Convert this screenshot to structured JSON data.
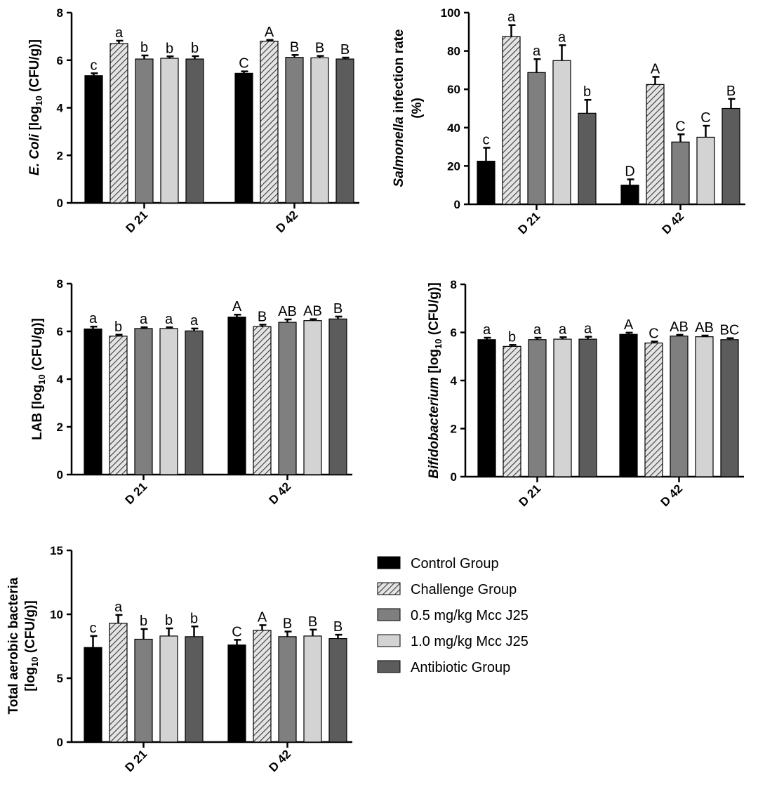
{
  "legend": [
    {
      "name": "Control Group",
      "fill": "#000000",
      "pattern": false
    },
    {
      "name": "Challenge Group",
      "fill": "#d0d0d0",
      "pattern": true
    },
    {
      "name": "0.5 mg/kg Mcc J25",
      "fill": "#7f7f7f",
      "pattern": false
    },
    {
      "name": "1.0 mg/kg Mcc J25",
      "fill": "#d3d3d3",
      "pattern": false
    },
    {
      "name": "Antibiotic Group",
      "fill": "#5c5c5c",
      "pattern": false
    }
  ],
  "chart_data": [
    {
      "type": "bar",
      "ylabel_parts": [
        {
          "t": "E. Coli",
          "s": "italic"
        },
        {
          "t": " [log"
        },
        {
          "t": "10",
          "s": "sub"
        },
        {
          "t": " (CFU/g)]"
        }
      ],
      "ylabel_lines": 1,
      "ylim": [
        0,
        8
      ],
      "yticks": [
        0,
        2,
        4,
        6,
        8
      ],
      "categories": [
        "D 21",
        "D 42"
      ],
      "series": [
        {
          "name": "Control Group",
          "values": [
            5.35,
            5.45
          ],
          "errors": [
            0.1,
            0.08
          ],
          "letters": [
            "c",
            "C"
          ]
        },
        {
          "name": "Challenge Group",
          "values": [
            6.7,
            6.8
          ],
          "errors": [
            0.12,
            0.05
          ],
          "letters": [
            "a",
            "A"
          ]
        },
        {
          "name": "0.5 mg/kg Mcc J25",
          "values": [
            6.05,
            6.12
          ],
          "errors": [
            0.15,
            0.1
          ],
          "letters": [
            "b",
            "B"
          ]
        },
        {
          "name": "1.0 mg/kg Mcc J25",
          "values": [
            6.08,
            6.1
          ],
          "errors": [
            0.08,
            0.08
          ],
          "letters": [
            "b",
            "B"
          ]
        },
        {
          "name": "Antibiotic Group",
          "values": [
            6.05,
            6.05
          ],
          "errors": [
            0.12,
            0.06
          ],
          "letters": [
            "b",
            "B"
          ]
        }
      ]
    },
    {
      "type": "bar",
      "ylabel_parts": [
        {
          "t": "Salmonella",
          "s": "italic"
        },
        {
          "t": " infection rate"
        }
      ],
      "ylabel_line2": "(%)",
      "ylabel_lines": 2,
      "ylim": [
        0,
        100
      ],
      "yticks": [
        0,
        20,
        40,
        60,
        80,
        100
      ],
      "categories": [
        "D 21",
        "D 42"
      ],
      "series": [
        {
          "name": "Control Group",
          "values": [
            22.5,
            10
          ],
          "errors": [
            7,
            3
          ],
          "letters": [
            "c",
            "D"
          ]
        },
        {
          "name": "Challenge Group",
          "values": [
            87.5,
            62.5
          ],
          "errors": [
            6,
            4
          ],
          "letters": [
            "a",
            "A"
          ]
        },
        {
          "name": "0.5 mg/kg Mcc J25",
          "values": [
            68.75,
            32.5
          ],
          "errors": [
            7,
            4
          ],
          "letters": [
            "a",
            "C"
          ]
        },
        {
          "name": "1.0 mg/kg Mcc J25",
          "values": [
            75,
            35
          ],
          "errors": [
            8,
            6
          ],
          "letters": [
            "a",
            "C"
          ]
        },
        {
          "name": "Antibiotic Group",
          "values": [
            47.5,
            50
          ],
          "errors": [
            7,
            5
          ],
          "letters": [
            "b",
            "B"
          ]
        }
      ]
    },
    {
      "type": "bar",
      "ylabel_parts": [
        {
          "t": "LAB [log"
        },
        {
          "t": "10",
          "s": "sub"
        },
        {
          "t": " (CFU/g)]"
        }
      ],
      "ylabel_lines": 1,
      "ylim": [
        0,
        8
      ],
      "yticks": [
        0,
        2,
        4,
        6,
        8
      ],
      "categories": [
        "D 21",
        "D 42"
      ],
      "series": [
        {
          "name": "Control Group",
          "values": [
            6.1,
            6.6
          ],
          "errors": [
            0.1,
            0.1
          ],
          "letters": [
            "a",
            "A"
          ]
        },
        {
          "name": "Challenge Group",
          "values": [
            5.8,
            6.2
          ],
          "errors": [
            0.06,
            0.08
          ],
          "letters": [
            "b",
            "B"
          ]
        },
        {
          "name": "0.5 mg/kg Mcc J25",
          "values": [
            6.12,
            6.38
          ],
          "errors": [
            0.05,
            0.12
          ],
          "letters": [
            "a",
            "AB"
          ]
        },
        {
          "name": "1.0 mg/kg Mcc J25",
          "values": [
            6.12,
            6.45
          ],
          "errors": [
            0.05,
            0.06
          ],
          "letters": [
            "a",
            "AB"
          ]
        },
        {
          "name": "Antibiotic Group",
          "values": [
            6.02,
            6.52
          ],
          "errors": [
            0.1,
            0.1
          ],
          "letters": [
            "a",
            "B"
          ]
        }
      ]
    },
    {
      "type": "bar",
      "ylabel_parts": [
        {
          "t": "Bifidobacterium",
          "s": "italic"
        },
        {
          "t": " [log"
        },
        {
          "t": "10",
          "s": "sub"
        },
        {
          "t": " (CFU/g)]"
        }
      ],
      "ylabel_lines": 1,
      "ylim": [
        0,
        8
      ],
      "yticks": [
        0,
        2,
        4,
        6,
        8
      ],
      "categories": [
        "D 21",
        "D 42"
      ],
      "series": [
        {
          "name": "Control Group",
          "values": [
            5.7,
            5.92
          ],
          "errors": [
            0.08,
            0.07
          ],
          "letters": [
            "a",
            "A"
          ]
        },
        {
          "name": "Challenge Group",
          "values": [
            5.42,
            5.56
          ],
          "errors": [
            0.06,
            0.06
          ],
          "letters": [
            "b",
            "C"
          ]
        },
        {
          "name": "0.5 mg/kg Mcc J25",
          "values": [
            5.7,
            5.85
          ],
          "errors": [
            0.08,
            0.05
          ],
          "letters": [
            "a",
            "AB"
          ]
        },
        {
          "name": "1.0 mg/kg Mcc J25",
          "values": [
            5.72,
            5.82
          ],
          "errors": [
            0.08,
            0.05
          ],
          "letters": [
            "a",
            "AB"
          ]
        },
        {
          "name": "Antibiotic Group",
          "values": [
            5.72,
            5.7
          ],
          "errors": [
            0.1,
            0.06
          ],
          "letters": [
            "a",
            "BC"
          ]
        }
      ]
    },
    {
      "type": "bar",
      "ylabel_parts": [
        {
          "t": "Total aerobic bacteria"
        }
      ],
      "ylabel_line2_parts": [
        {
          "t": "[log"
        },
        {
          "t": "10",
          "s": "sub"
        },
        {
          "t": " (CFU/g)]"
        }
      ],
      "ylabel_lines": 2,
      "ylim": [
        0,
        15
      ],
      "yticks": [
        0,
        5,
        10,
        15
      ],
      "categories": [
        "D 21",
        "D 42"
      ],
      "series": [
        {
          "name": "Control Group",
          "values": [
            7.4,
            7.6
          ],
          "errors": [
            0.9,
            0.4
          ],
          "letters": [
            "c",
            "C"
          ]
        },
        {
          "name": "Challenge Group",
          "values": [
            9.3,
            8.75
          ],
          "errors": [
            0.65,
            0.4
          ],
          "letters": [
            "a",
            "A"
          ]
        },
        {
          "name": "0.5 mg/kg Mcc J25",
          "values": [
            8.05,
            8.25
          ],
          "errors": [
            0.8,
            0.4
          ],
          "letters": [
            "b",
            "B"
          ]
        },
        {
          "name": "1.0 mg/kg Mcc J25",
          "values": [
            8.3,
            8.3
          ],
          "errors": [
            0.6,
            0.5
          ],
          "letters": [
            "b",
            "B"
          ]
        },
        {
          "name": "Antibiotic Group",
          "values": [
            8.25,
            8.1
          ],
          "errors": [
            0.8,
            0.3
          ],
          "letters": [
            "b",
            "B"
          ]
        }
      ]
    }
  ]
}
